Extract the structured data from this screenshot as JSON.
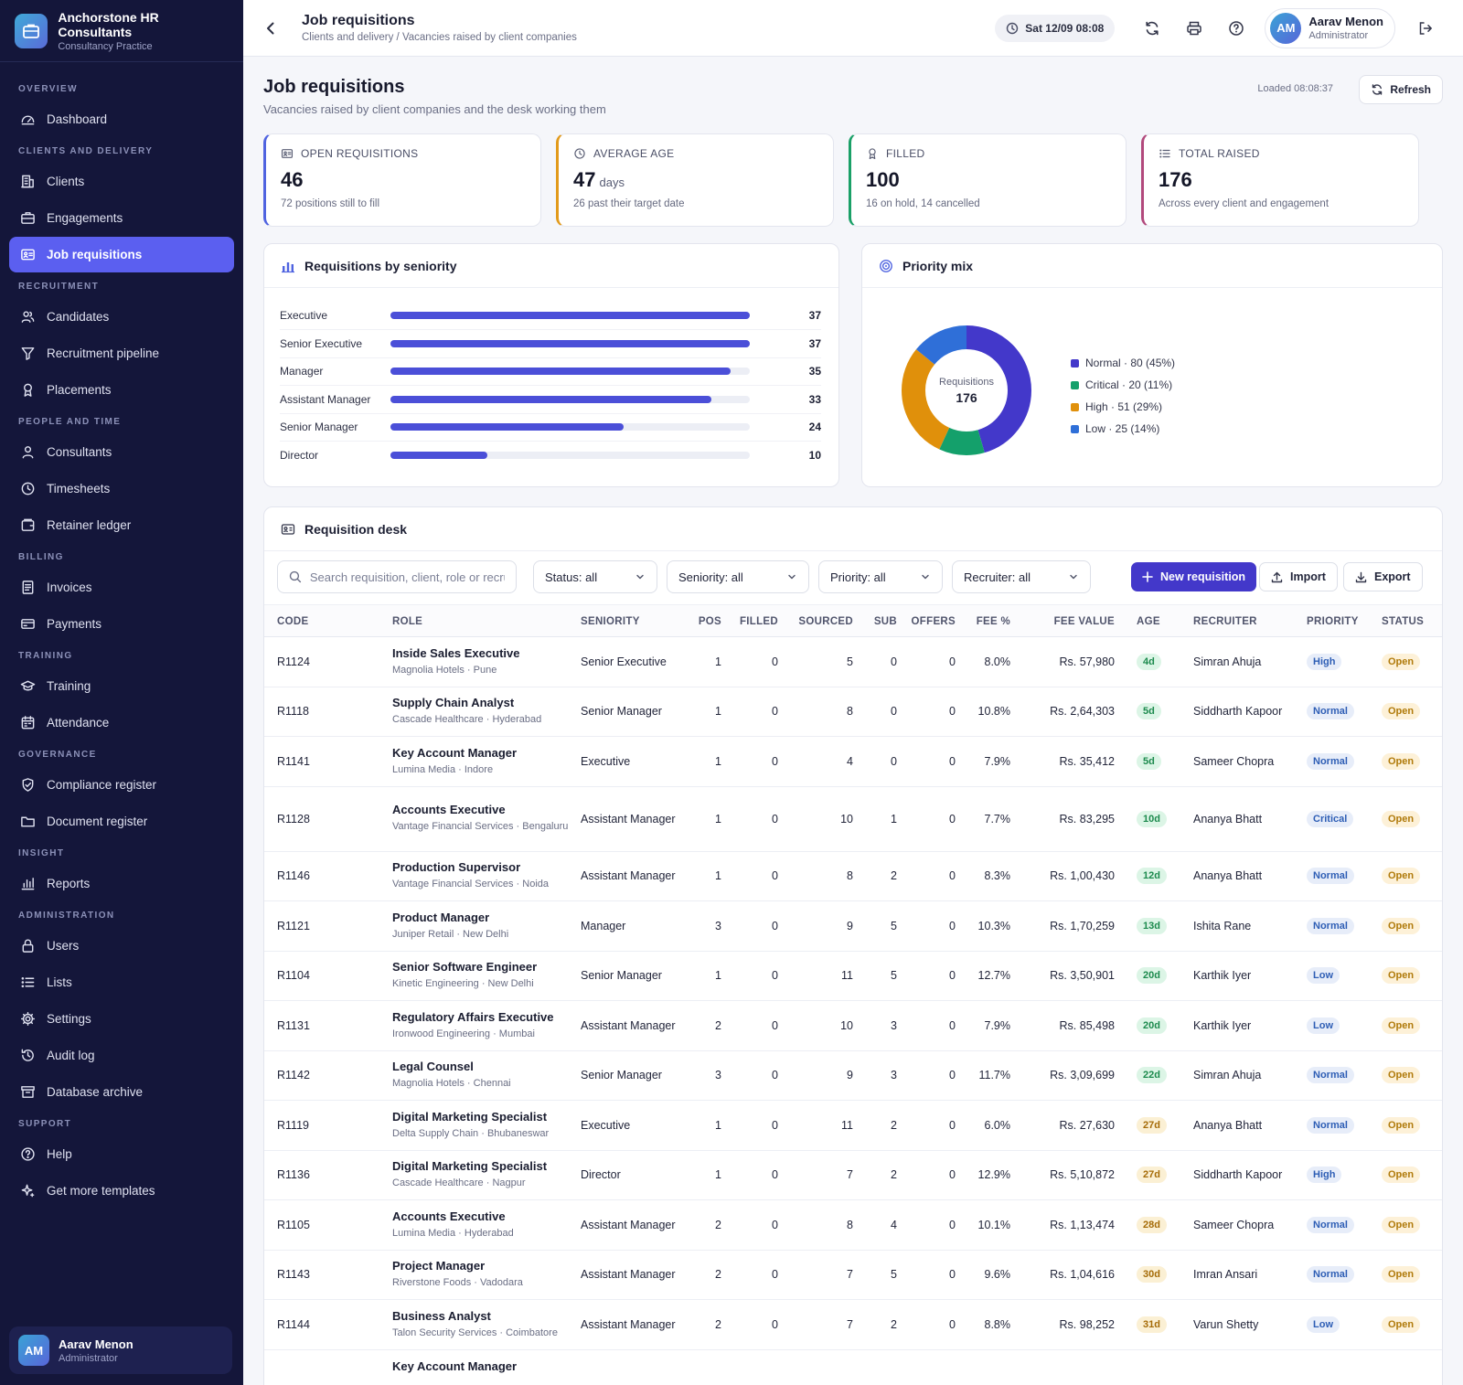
{
  "brand": {
    "title": "Anchorstone HR Consultants",
    "subtitle": "Consultancy Practice"
  },
  "nav": [
    {
      "type": "section",
      "label": "OVERVIEW"
    },
    {
      "type": "item",
      "label": "Dashboard",
      "icon": "dashboard-icon"
    },
    {
      "type": "section",
      "label": "CLIENTS AND DELIVERY"
    },
    {
      "type": "item",
      "label": "Clients",
      "icon": "building-icon"
    },
    {
      "type": "item",
      "label": "Engagements",
      "icon": "briefcase-icon"
    },
    {
      "type": "item",
      "label": "Job requisitions",
      "icon": "id-card-icon",
      "active": true
    },
    {
      "type": "section",
      "label": "RECRUITMENT"
    },
    {
      "type": "item",
      "label": "Candidates",
      "icon": "users-icon"
    },
    {
      "type": "item",
      "label": "Recruitment pipeline",
      "icon": "filter-icon"
    },
    {
      "type": "item",
      "label": "Placements",
      "icon": "award-icon"
    },
    {
      "type": "section",
      "label": "PEOPLE AND TIME"
    },
    {
      "type": "item",
      "label": "Consultants",
      "icon": "user-icon"
    },
    {
      "type": "item",
      "label": "Timesheets",
      "icon": "clock-icon"
    },
    {
      "type": "item",
      "label": "Retainer ledger",
      "icon": "wallet-icon"
    },
    {
      "type": "section",
      "label": "BILLING"
    },
    {
      "type": "item",
      "label": "Invoices",
      "icon": "invoice-icon"
    },
    {
      "type": "item",
      "label": "Payments",
      "icon": "card-icon"
    },
    {
      "type": "section",
      "label": "TRAINING"
    },
    {
      "type": "item",
      "label": "Training",
      "icon": "graduation-cap-icon"
    },
    {
      "type": "item",
      "label": "Attendance",
      "icon": "calendar-icon"
    },
    {
      "type": "section",
      "label": "GOVERNANCE"
    },
    {
      "type": "item",
      "label": "Compliance register",
      "icon": "shield-icon"
    },
    {
      "type": "item",
      "label": "Document register",
      "icon": "folder-icon"
    },
    {
      "type": "section",
      "label": "INSIGHT"
    },
    {
      "type": "item",
      "label": "Reports",
      "icon": "bar-chart-icon"
    },
    {
      "type": "section",
      "label": "ADMINISTRATION"
    },
    {
      "type": "item",
      "label": "Users",
      "icon": "lock-icon"
    },
    {
      "type": "item",
      "label": "Lists",
      "icon": "list-icon"
    },
    {
      "type": "item",
      "label": "Settings",
      "icon": "gear-icon"
    },
    {
      "type": "item",
      "label": "Audit log",
      "icon": "history-icon"
    },
    {
      "type": "item",
      "label": "Database archive",
      "icon": "archive-icon"
    },
    {
      "type": "section",
      "label": "SUPPORT"
    },
    {
      "type": "item",
      "label": "Help",
      "icon": "help-icon"
    },
    {
      "type": "item",
      "label": "Get more templates",
      "icon": "sparkle-icon"
    }
  ],
  "user": {
    "initials": "AM",
    "name": "Aarav Menon",
    "role": "Administrator"
  },
  "topbar": {
    "title": "Job requisitions",
    "breadcrumb": "Clients and delivery / Vacancies raised by client companies",
    "datetime": "Sat 12/09 08:08"
  },
  "page": {
    "title": "Job requisitions",
    "subtitle": "Vacancies raised by client companies and the desk working them",
    "loaded": "Loaded 08:08:37",
    "refresh_label": "Refresh"
  },
  "kpis": [
    {
      "label": "OPEN REQUISITIONS",
      "value": "46",
      "unit": "",
      "note": "72 positions still to fill",
      "color": "#4f63e0",
      "icon": "id-card-icon"
    },
    {
      "label": "AVERAGE AGE",
      "value": "47",
      "unit": "days",
      "note": "26 past their target date",
      "color": "#e29a1b",
      "icon": "clock-icon"
    },
    {
      "label": "FILLED",
      "value": "100",
      "unit": "",
      "note": "16 on hold, 14 cancelled",
      "color": "#1aa067",
      "icon": "award-icon"
    },
    {
      "label": "TOTAL RAISED",
      "value": "176",
      "unit": "",
      "note": "Across every client and engagement",
      "color": "#b2497c",
      "icon": "list-icon"
    }
  ],
  "seniority": {
    "title": "Requisitions by seniority",
    "chart_data": {
      "type": "bar",
      "orientation": "horizontal",
      "categories": [
        "Executive",
        "Senior Executive",
        "Manager",
        "Assistant Manager",
        "Senior Manager",
        "Director"
      ],
      "values": [
        37,
        37,
        35,
        33,
        24,
        10
      ],
      "xlim": [
        0,
        37
      ],
      "color": "#4b4fd8"
    }
  },
  "priority": {
    "title": "Priority mix",
    "center_label": "Requisitions",
    "center_value": "176",
    "chart_data": {
      "type": "pie",
      "donut": true,
      "slices": [
        {
          "name": "Normal",
          "value": 80,
          "legend": "Normal · 80 (45%)",
          "color": "#4338ca"
        },
        {
          "name": "Critical",
          "value": 20,
          "legend": "Critical · 20 (11%)",
          "color": "#14a06b"
        },
        {
          "name": "High",
          "value": 51,
          "legend": "High · 51 (29%)",
          "color": "#e0900b"
        },
        {
          "name": "Low",
          "value": 25,
          "legend": "Low · 25 (14%)",
          "color": "#2f6fd8"
        }
      ]
    }
  },
  "desk": {
    "title": "Requisition desk",
    "search_placeholder": "Search requisition, client, role or recruiter",
    "filters": [
      "Status: all",
      "Seniority: all",
      "Priority: all",
      "Recruiter: all"
    ],
    "new_label": "New requisition",
    "import_label": "Import",
    "export_label": "Export",
    "columns": [
      "CODE",
      "ROLE",
      "SENIORITY",
      "POS",
      "FILLED",
      "SOURCED",
      "SUB",
      "OFFERS",
      "FEE %",
      "FEE VALUE",
      "AGE",
      "RECRUITER",
      "PRIORITY",
      "STATUS"
    ],
    "rows": [
      {
        "code": "R1124",
        "role": "Inside Sales Executive",
        "client": "Magnolia Hotels · Pune",
        "seniority": "Senior Executive",
        "pos": "1",
        "filled": "0",
        "sourced": "5",
        "sub": "0",
        "offers": "0",
        "fee_pct": "8.0%",
        "fee_value": "Rs. 57,980",
        "age": "4d",
        "recruiter": "Simran Ahuja",
        "priority": "High",
        "status": "Open"
      },
      {
        "code": "R1118",
        "role": "Supply Chain Analyst",
        "client": "Cascade Healthcare · Hyderabad",
        "seniority": "Senior Manager",
        "pos": "1",
        "filled": "0",
        "sourced": "8",
        "sub": "0",
        "offers": "0",
        "fee_pct": "10.8%",
        "fee_value": "Rs. 2,64,303",
        "age": "5d",
        "recruiter": "Siddharth Kapoor",
        "priority": "Normal",
        "status": "Open"
      },
      {
        "code": "R1141",
        "role": "Key Account Manager",
        "client": "Lumina Media · Indore",
        "seniority": "Executive",
        "pos": "1",
        "filled": "0",
        "sourced": "4",
        "sub": "0",
        "offers": "0",
        "fee_pct": "7.9%",
        "fee_value": "Rs. 35,412",
        "age": "5d",
        "recruiter": "Sameer Chopra",
        "priority": "Normal",
        "status": "Open"
      },
      {
        "code": "R1128",
        "role": "Accounts Executive",
        "client": "Vantage Financial Services · Bengaluru",
        "seniority": "Assistant Manager",
        "pos": "1",
        "filled": "0",
        "sourced": "10",
        "sub": "1",
        "offers": "0",
        "fee_pct": "7.7%",
        "fee_value": "Rs. 83,295",
        "age": "10d",
        "recruiter": "Ananya Bhatt",
        "priority": "Critical",
        "status": "Open",
        "tall": true
      },
      {
        "code": "R1146",
        "role": "Production Supervisor",
        "client": "Vantage Financial Services · Noida",
        "seniority": "Assistant Manager",
        "pos": "1",
        "filled": "0",
        "sourced": "8",
        "sub": "2",
        "offers": "0",
        "fee_pct": "8.3%",
        "fee_value": "Rs. 1,00,430",
        "age": "12d",
        "recruiter": "Ananya Bhatt",
        "priority": "Normal",
        "status": "Open"
      },
      {
        "code": "R1121",
        "role": "Product Manager",
        "client": "Juniper Retail · New Delhi",
        "seniority": "Manager",
        "pos": "3",
        "filled": "0",
        "sourced": "9",
        "sub": "5",
        "offers": "0",
        "fee_pct": "10.3%",
        "fee_value": "Rs. 1,70,259",
        "age": "13d",
        "recruiter": "Ishita Rane",
        "priority": "Normal",
        "status": "Open"
      },
      {
        "code": "R1104",
        "role": "Senior Software Engineer",
        "client": "Kinetic Engineering · New Delhi",
        "seniority": "Senior Manager",
        "pos": "1",
        "filled": "0",
        "sourced": "11",
        "sub": "5",
        "offers": "0",
        "fee_pct": "12.7%",
        "fee_value": "Rs. 3,50,901",
        "age": "20d",
        "recruiter": "Karthik Iyer",
        "priority": "Low",
        "status": "Open"
      },
      {
        "code": "R1131",
        "role": "Regulatory Affairs Executive",
        "client": "Ironwood Engineering · Mumbai",
        "seniority": "Assistant Manager",
        "pos": "2",
        "filled": "0",
        "sourced": "10",
        "sub": "3",
        "offers": "0",
        "fee_pct": "7.9%",
        "fee_value": "Rs. 85,498",
        "age": "20d",
        "recruiter": "Karthik Iyer",
        "priority": "Low",
        "status": "Open"
      },
      {
        "code": "R1142",
        "role": "Legal Counsel",
        "client": "Magnolia Hotels · Chennai",
        "seniority": "Senior Manager",
        "pos": "3",
        "filled": "0",
        "sourced": "9",
        "sub": "3",
        "offers": "0",
        "fee_pct": "11.7%",
        "fee_value": "Rs. 3,09,699",
        "age": "22d",
        "recruiter": "Simran Ahuja",
        "priority": "Normal",
        "status": "Open"
      },
      {
        "code": "R1119",
        "role": "Digital Marketing Specialist",
        "client": "Delta Supply Chain · Bhubaneswar",
        "seniority": "Executive",
        "pos": "1",
        "filled": "0",
        "sourced": "11",
        "sub": "2",
        "offers": "0",
        "fee_pct": "6.0%",
        "fee_value": "Rs. 27,630",
        "age": "27d",
        "recruiter": "Ananya Bhatt",
        "priority": "Normal",
        "status": "Open"
      },
      {
        "code": "R1136",
        "role": "Digital Marketing Specialist",
        "client": "Cascade Healthcare · Nagpur",
        "seniority": "Director",
        "pos": "1",
        "filled": "0",
        "sourced": "7",
        "sub": "2",
        "offers": "0",
        "fee_pct": "12.9%",
        "fee_value": "Rs. 5,10,872",
        "age": "27d",
        "recruiter": "Siddharth Kapoor",
        "priority": "High",
        "status": "Open"
      },
      {
        "code": "R1105",
        "role": "Accounts Executive",
        "client": "Lumina Media · Hyderabad",
        "seniority": "Assistant Manager",
        "pos": "2",
        "filled": "0",
        "sourced": "8",
        "sub": "4",
        "offers": "0",
        "fee_pct": "10.1%",
        "fee_value": "Rs. 1,13,474",
        "age": "28d",
        "recruiter": "Sameer Chopra",
        "priority": "Normal",
        "status": "Open"
      },
      {
        "code": "R1143",
        "role": "Project Manager",
        "client": "Riverstone Foods · Vadodara",
        "seniority": "Assistant Manager",
        "pos": "2",
        "filled": "0",
        "sourced": "7",
        "sub": "5",
        "offers": "0",
        "fee_pct": "9.6%",
        "fee_value": "Rs. 1,04,616",
        "age": "30d",
        "recruiter": "Imran Ansari",
        "priority": "Normal",
        "status": "Open"
      },
      {
        "code": "R1144",
        "role": "Business Analyst",
        "client": "Talon Security Services · Coimbatore",
        "seniority": "Assistant Manager",
        "pos": "2",
        "filled": "0",
        "sourced": "7",
        "sub": "2",
        "offers": "0",
        "fee_pct": "8.8%",
        "fee_value": "Rs. 98,252",
        "age": "31d",
        "recruiter": "Varun Shetty",
        "priority": "Low",
        "status": "Open"
      },
      {
        "code": "",
        "role": "Key Account Manager",
        "client": "",
        "seniority": "",
        "pos": "",
        "filled": "",
        "sourced": "",
        "sub": "",
        "offers": "",
        "fee_pct": "",
        "fee_value": "",
        "age": "",
        "recruiter": "",
        "priority": "",
        "status": ""
      }
    ]
  }
}
